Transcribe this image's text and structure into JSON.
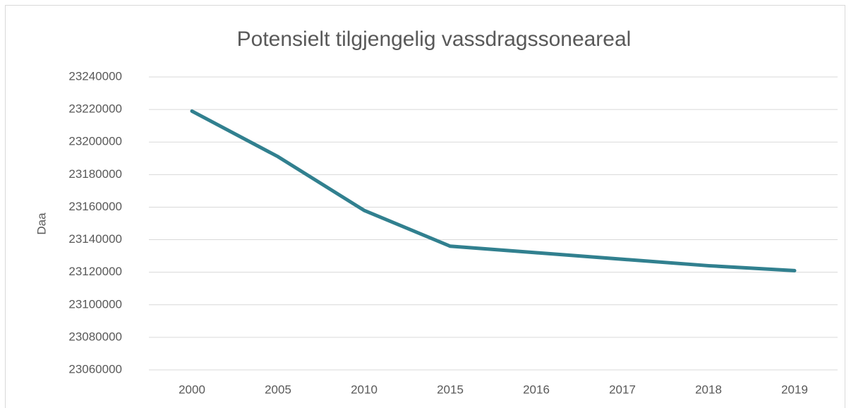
{
  "chart_data": {
    "type": "line",
    "title": "Potensielt tilgjengelig vassdragssoneareal",
    "y_label": "Daa",
    "categories": [
      "2000",
      "2005",
      "2010",
      "2015",
      "2016",
      "2017",
      "2018",
      "2019"
    ],
    "series": [
      {
        "name": "Daa",
        "color": "#31808f",
        "values": [
          23219000,
          23191000,
          23158000,
          23136000,
          23132000,
          23128000,
          23124000,
          23121000
        ]
      }
    ],
    "ylim": [
      23060000,
      23240000
    ],
    "yticks": [
      23060000,
      23080000,
      23100000,
      23120000,
      23140000,
      23160000,
      23180000,
      23200000,
      23220000,
      23240000
    ],
    "grid": true
  }
}
